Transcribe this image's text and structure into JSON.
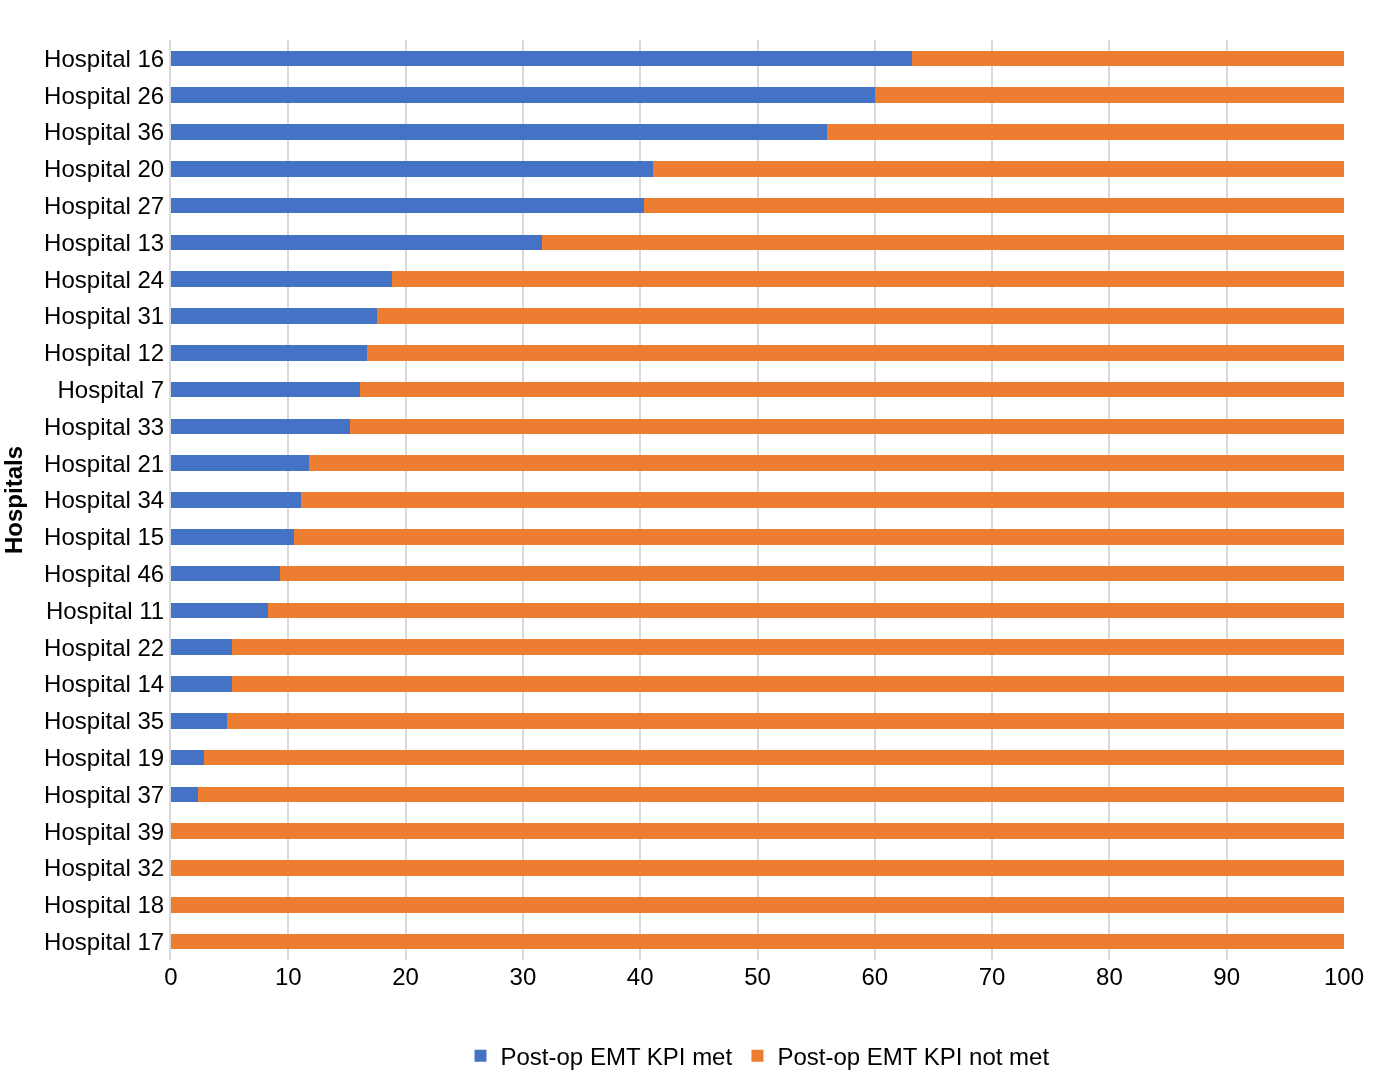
{
  "chart_data": {
    "type": "bar",
    "orientation": "horizontal",
    "stacked": true,
    "ylabel": "Hospitals",
    "categories": [
      "Hospital 16",
      "Hospital 26",
      "Hospital 36",
      "Hospital 20",
      "Hospital 27",
      "Hospital 13",
      "Hospital 24",
      "Hospital 31",
      "Hospital 12",
      "Hospital 7",
      "Hospital 33",
      "Hospital 21",
      "Hospital 34",
      "Hospital 15",
      "Hospital 46",
      "Hospital 11",
      "Hospital 22",
      "Hospital 14",
      "Hospital 35",
      "Hospital 19",
      "Hospital 37",
      "Hospital 39",
      "Hospital 32",
      "Hospital 18",
      "Hospital 17"
    ],
    "series": [
      {
        "name": "Post-op EMT KPI met",
        "color": "#4472c4",
        "values": [
          63.2,
          60,
          55.9,
          41.1,
          40.3,
          31.6,
          18.8,
          17.6,
          16.7,
          16.1,
          15.3,
          11.8,
          11.1,
          10.5,
          9.3,
          8.3,
          5.2,
          5.2,
          4.8,
          2.8,
          2.3,
          0,
          0,
          0,
          0
        ]
      },
      {
        "name": "Post-op EMT KPI not met",
        "color": "#ed7d31",
        "values": [
          36.8,
          40,
          44.1,
          58.9,
          59.7,
          68.4,
          81.2,
          82.4,
          83.3,
          83.9,
          84.7,
          88.2,
          88.9,
          89.5,
          90.7,
          91.7,
          94.8,
          94.8,
          95.2,
          97.2,
          97.7,
          100,
          100,
          100,
          100
        ]
      }
    ],
    "xlim": [
      0,
      100
    ],
    "xticks": [
      0,
      10,
      20,
      30,
      40,
      50,
      60,
      70,
      80,
      90,
      100
    ],
    "grid": "x",
    "legend": "bottom"
  }
}
